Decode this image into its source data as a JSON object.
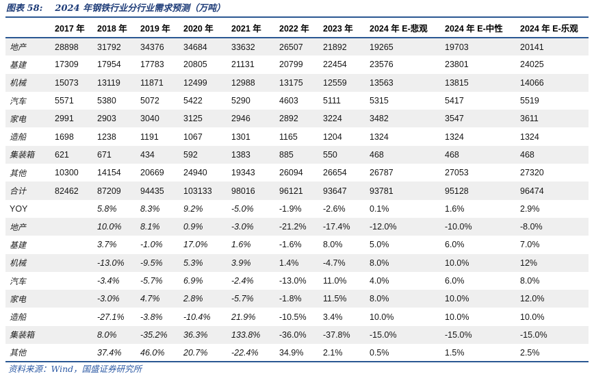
{
  "title": {
    "label": "图表 58:",
    "text": "2024 年钢铁行业分行业需求预测（万吨）"
  },
  "source": "资料来源：Wind，国盛证券研究所",
  "colors": {
    "navy_border": "#2a5792",
    "title_navy": "#1e3c78",
    "source_blue": "#2e5ba5",
    "stripe_gray": "#efefef"
  },
  "table": {
    "columns": [
      "",
      "2017 年",
      "2018 年",
      "2019 年",
      "2020 年",
      "2021 年",
      "2022 年",
      "2023 年",
      "2024 年 E-悲观",
      "2024 年 E-中性",
      "2024 年 E-乐观"
    ],
    "pct_italic_range": [
      1,
      4
    ],
    "rows": [
      {
        "label": "地产",
        "cjk": true,
        "section": "volume",
        "cells": [
          "28898",
          "31792",
          "34376",
          "34684",
          "33632",
          "26507",
          "21892",
          "19265",
          "19703",
          "20141"
        ]
      },
      {
        "label": "基建",
        "cjk": true,
        "section": "volume",
        "cells": [
          "17309",
          "17954",
          "17783",
          "20805",
          "21131",
          "20799",
          "22454",
          "23576",
          "23801",
          "24025"
        ]
      },
      {
        "label": "机械",
        "cjk": true,
        "section": "volume",
        "cells": [
          "15073",
          "13119",
          "11871",
          "12499",
          "12988",
          "13175",
          "12559",
          "13563",
          "13815",
          "14066"
        ]
      },
      {
        "label": "汽车",
        "cjk": true,
        "section": "volume",
        "cells": [
          "5571",
          "5380",
          "5072",
          "5422",
          "5290",
          "4603",
          "5111",
          "5315",
          "5417",
          "5519"
        ]
      },
      {
        "label": "家电",
        "cjk": true,
        "section": "volume",
        "cells": [
          "2991",
          "2903",
          "3040",
          "3125",
          "2946",
          "2892",
          "3224",
          "3482",
          "3547",
          "3611"
        ]
      },
      {
        "label": "造船",
        "cjk": true,
        "section": "volume",
        "cells": [
          "1698",
          "1238",
          "1191",
          "1067",
          "1301",
          "1165",
          "1204",
          "1324",
          "1324",
          "1324"
        ]
      },
      {
        "label": "集装箱",
        "cjk": true,
        "section": "volume",
        "cells": [
          "621",
          "671",
          "434",
          "592",
          "1383",
          "885",
          "550",
          "468",
          "468",
          "468"
        ]
      },
      {
        "label": "其他",
        "cjk": true,
        "section": "volume",
        "cells": [
          "10300",
          "14154",
          "20669",
          "24940",
          "19343",
          "26094",
          "26654",
          "26787",
          "27053",
          "27320"
        ]
      },
      {
        "label": "合计",
        "cjk": true,
        "section": "volume",
        "cells": [
          "82462",
          "87209",
          "94435",
          "103133",
          "98016",
          "96121",
          "93647",
          "93781",
          "95128",
          "96474"
        ]
      },
      {
        "label": "YOY",
        "cjk": false,
        "section": "pct",
        "cells": [
          "",
          "5.8%",
          "8.3%",
          "9.2%",
          "-5.0%",
          "-1.9%",
          "-2.6%",
          "0.1%",
          "1.6%",
          "2.9%"
        ]
      },
      {
        "label": "地产",
        "cjk": true,
        "section": "pct",
        "cells": [
          "",
          "10.0%",
          "8.1%",
          "0.9%",
          "-3.0%",
          "-21.2%",
          "-17.4%",
          "-12.0%",
          "-10.0%",
          "-8.0%"
        ]
      },
      {
        "label": "基建",
        "cjk": true,
        "section": "pct",
        "cells": [
          "",
          "3.7%",
          "-1.0%",
          "17.0%",
          "1.6%",
          "-1.6%",
          "8.0%",
          "5.0%",
          "6.0%",
          "7.0%"
        ]
      },
      {
        "label": "机械",
        "cjk": true,
        "section": "pct",
        "cells": [
          "",
          "-13.0%",
          "-9.5%",
          "5.3%",
          "3.9%",
          "1.4%",
          "-4.7%",
          "8.0%",
          "10.0%",
          "12%"
        ]
      },
      {
        "label": "汽车",
        "cjk": true,
        "section": "pct",
        "cells": [
          "",
          "-3.4%",
          "-5.7%",
          "6.9%",
          "-2.4%",
          "-13.0%",
          "11.0%",
          "4.0%",
          "6.0%",
          "8.0%"
        ]
      },
      {
        "label": "家电",
        "cjk": true,
        "section": "pct",
        "cells": [
          "",
          "-3.0%",
          "4.7%",
          "2.8%",
          "-5.7%",
          "-1.8%",
          "11.5%",
          "8.0%",
          "10.0%",
          "12.0%"
        ]
      },
      {
        "label": "造船",
        "cjk": true,
        "section": "pct",
        "cells": [
          "",
          "-27.1%",
          "-3.8%",
          "-10.4%",
          "21.9%",
          "-10.5%",
          "3.4%",
          "10.0%",
          "10.0%",
          "10.0%"
        ]
      },
      {
        "label": "集装箱",
        "cjk": true,
        "section": "pct",
        "cells": [
          "",
          "8.0%",
          "-35.2%",
          "36.3%",
          "133.8%",
          "-36.0%",
          "-37.8%",
          "-15.0%",
          "-15.0%",
          "-15.0%"
        ]
      },
      {
        "label": "其他",
        "cjk": true,
        "section": "pct",
        "cells": [
          "",
          "37.4%",
          "46.0%",
          "20.7%",
          "-22.4%",
          "34.9%",
          "2.1%",
          "0.5%",
          "1.5%",
          "2.5%"
        ]
      }
    ]
  }
}
